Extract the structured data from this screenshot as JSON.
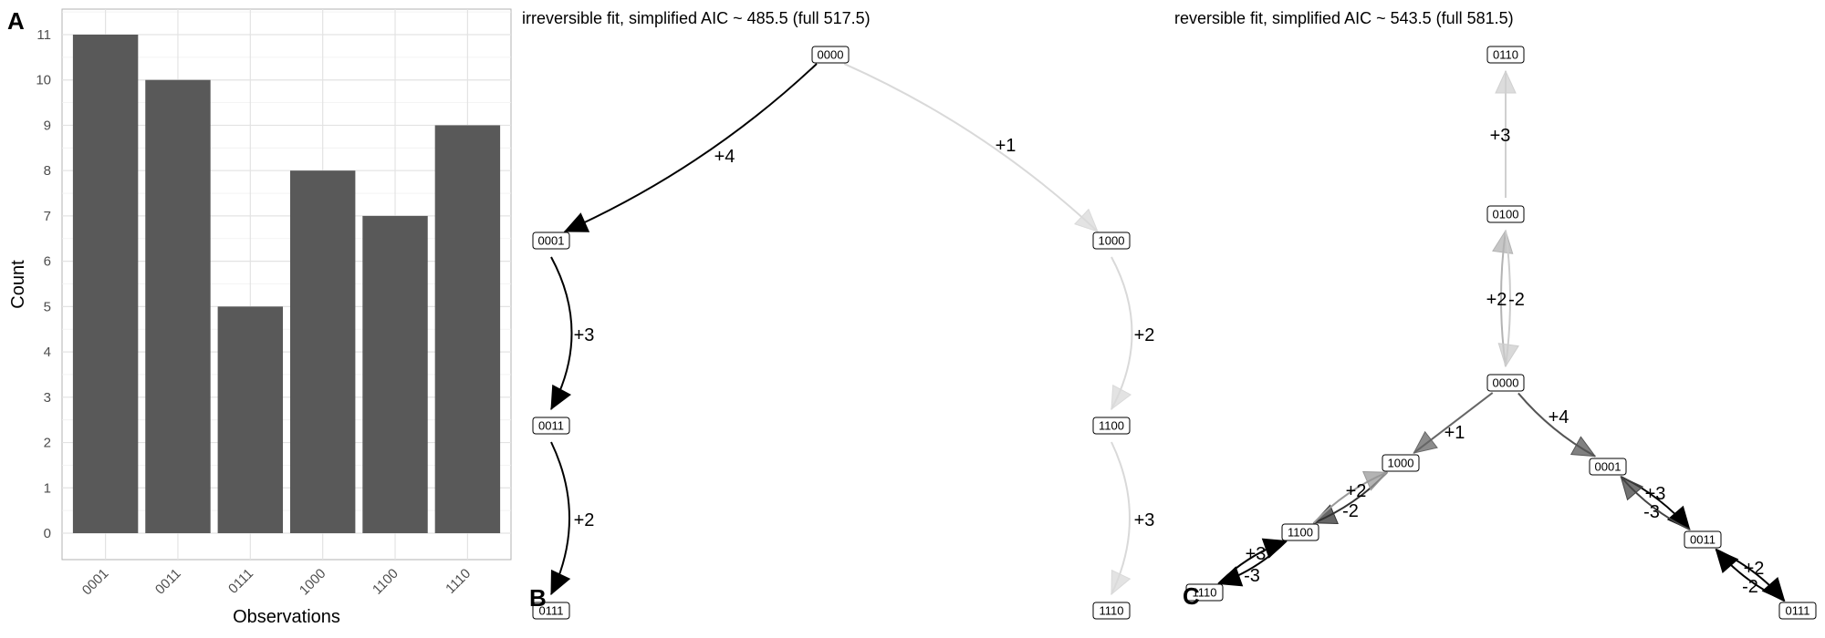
{
  "chart_data": [
    {
      "panel": "A",
      "type": "bar",
      "xlabel": "Observations",
      "ylabel": "Count",
      "categories": [
        "0001",
        "0011",
        "0111",
        "1000",
        "1100",
        "1110"
      ],
      "values": [
        11,
        10,
        5,
        8,
        7,
        9
      ],
      "ylim": [
        0,
        11
      ],
      "yticks": [
        0,
        1,
        2,
        3,
        4,
        5,
        6,
        7,
        8,
        9,
        10,
        11
      ],
      "grid": true,
      "bar_color": "#595959"
    },
    {
      "panel": "B",
      "type": "network",
      "title": "irreversible fit, simplified AIC ~ 485.5 (full 517.5)",
      "nodes": [
        {
          "id": "0000",
          "label": "0000"
        },
        {
          "id": "0001",
          "label": "0001"
        },
        {
          "id": "0011",
          "label": "0011"
        },
        {
          "id": "0111",
          "label": "0111"
        },
        {
          "id": "1000",
          "label": "1000"
        },
        {
          "id": "1100",
          "label": "1100"
        },
        {
          "id": "1110",
          "label": "1110"
        }
      ],
      "edges": [
        {
          "from": "0000",
          "to": "0001",
          "label": "+4",
          "color": "#000000"
        },
        {
          "from": "0001",
          "to": "0011",
          "label": "+3",
          "color": "#000000"
        },
        {
          "from": "0011",
          "to": "0111",
          "label": "+2",
          "color": "#000000"
        },
        {
          "from": "0000",
          "to": "1000",
          "label": "+1",
          "color": "#d9d9d9"
        },
        {
          "from": "1000",
          "to": "1100",
          "label": "+2",
          "color": "#d9d9d9"
        },
        {
          "from": "1100",
          "to": "1110",
          "label": "+3",
          "color": "#d9d9d9"
        }
      ]
    },
    {
      "panel": "C",
      "type": "network",
      "title": "reversible fit, simplified AIC ~ 543.5 (full 581.5)",
      "nodes": [
        {
          "id": "0110",
          "label": "0110"
        },
        {
          "id": "0100",
          "label": "0100"
        },
        {
          "id": "0000",
          "label": "0000"
        },
        {
          "id": "1000",
          "label": "1000"
        },
        {
          "id": "1100",
          "label": "1100"
        },
        {
          "id": "1110",
          "label": "1110"
        },
        {
          "id": "0001",
          "label": "0001"
        },
        {
          "id": "0011",
          "label": "0011"
        },
        {
          "id": "0111",
          "label": "0111"
        }
      ],
      "edges": [
        {
          "from": "0100",
          "to": "0110",
          "label": "+3",
          "color": "#d0d0d0"
        },
        {
          "from": "0000",
          "to": "0100",
          "label": "+2",
          "color": "#b3b3b3"
        },
        {
          "from": "0100",
          "to": "0000",
          "label": "-2",
          "color": "#cccccc"
        },
        {
          "from": "0000",
          "to": "1000",
          "label": "+1",
          "color": "#666666"
        },
        {
          "from": "1000",
          "to": "1100",
          "label": "+2",
          "color": "#333333"
        },
        {
          "from": "1100",
          "to": "1000",
          "label": "-2",
          "color": "#999999"
        },
        {
          "from": "1100",
          "to": "1110",
          "label": "+3",
          "color": "#000000"
        },
        {
          "from": "1110",
          "to": "1100",
          "label": "-3",
          "color": "#000000"
        },
        {
          "from": "0000",
          "to": "0001",
          "label": "+4",
          "color": "#555555"
        },
        {
          "from": "0001",
          "to": "0011",
          "label": "+3",
          "color": "#000000"
        },
        {
          "from": "0011",
          "to": "0001",
          "label": "-3",
          "color": "#444444"
        },
        {
          "from": "0011",
          "to": "0111",
          "label": "+2",
          "color": "#000000"
        },
        {
          "from": "0111",
          "to": "0011",
          "label": "-2",
          "color": "#000000"
        }
      ]
    }
  ]
}
